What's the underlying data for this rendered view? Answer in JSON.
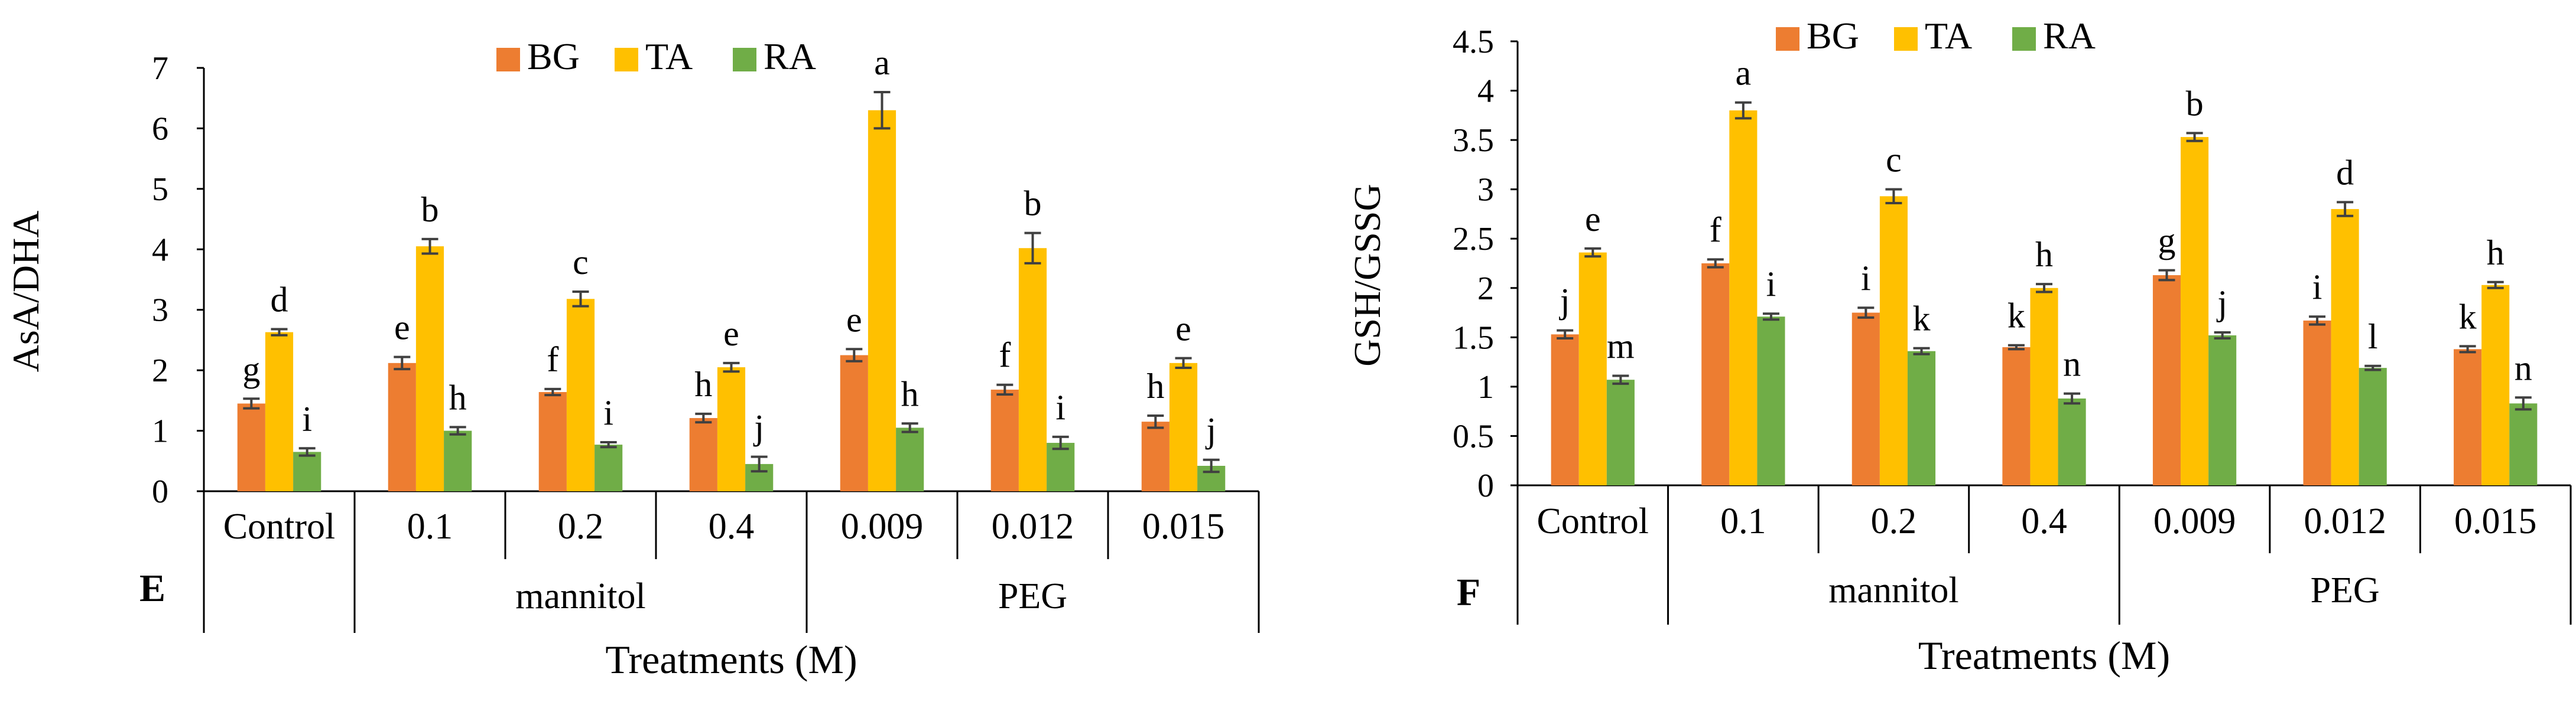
{
  "colors": {
    "BG": "#ED7D31",
    "TA": "#FFC000",
    "RA": "#70AD47",
    "axis": "#000000",
    "error": "#404040"
  },
  "chart_data": [
    {
      "type": "bar",
      "panel_label": "E",
      "ylabel": "AsA/DHA",
      "xlabel": "Treatments (M)",
      "ylim": [
        0,
        7
      ],
      "yticks": [
        "0",
        "1",
        "2",
        "3",
        "4",
        "5",
        "6",
        "7"
      ],
      "legend": [
        "BG",
        "TA",
        "RA"
      ],
      "legend_position": "top-center",
      "categories": [
        "Control",
        "0.1",
        "0.2",
        "0.4",
        "0.009",
        "0.012",
        "0.015"
      ],
      "groups": [
        {
          "label": "mannitol",
          "span": [
            1,
            3
          ]
        },
        {
          "label": "PEG",
          "span": [
            4,
            6
          ]
        }
      ],
      "series": [
        {
          "name": "BG",
          "values": [
            1.45,
            2.12,
            1.64,
            1.21,
            2.25,
            1.68,
            1.15
          ],
          "errors": [
            0.08,
            0.1,
            0.05,
            0.07,
            0.1,
            0.08,
            0.1
          ],
          "letters": [
            "g",
            "e",
            "f",
            "h",
            "e",
            "f",
            "h"
          ]
        },
        {
          "name": "TA",
          "values": [
            2.63,
            4.05,
            3.18,
            2.05,
            6.3,
            4.02,
            2.12
          ],
          "errors": [
            0.05,
            0.12,
            0.12,
            0.07,
            0.3,
            0.25,
            0.08
          ],
          "letters": [
            "d",
            "b",
            "c",
            "e",
            "a",
            "b",
            "e"
          ]
        },
        {
          "name": "RA",
          "values": [
            0.65,
            1.0,
            0.77,
            0.45,
            1.05,
            0.8,
            0.42
          ],
          "errors": [
            0.06,
            0.06,
            0.04,
            0.12,
            0.07,
            0.1,
            0.1
          ],
          "letters": [
            "i",
            "h",
            "i",
            "j",
            "h",
            "i",
            "j"
          ]
        }
      ]
    },
    {
      "type": "bar",
      "panel_label": "F",
      "ylabel": "GSH/GSSG",
      "xlabel": "Treatments (M)",
      "ylim": [
        0,
        4.5
      ],
      "yticks": [
        "0",
        "0.5",
        "1",
        "1.5",
        "2",
        "2.5",
        "3",
        "3.5",
        "4",
        "4.5"
      ],
      "legend": [
        "BG",
        "TA",
        "RA"
      ],
      "legend_position": "top-center",
      "categories": [
        "Control",
        "0.1",
        "0.2",
        "0.4",
        "0.009",
        "0.012",
        "0.015"
      ],
      "groups": [
        {
          "label": "mannitol",
          "span": [
            1,
            3
          ]
        },
        {
          "label": "PEG",
          "span": [
            4,
            6
          ]
        }
      ],
      "series": [
        {
          "name": "BG",
          "values": [
            1.53,
            2.25,
            1.75,
            1.4,
            2.13,
            1.67,
            1.38
          ],
          "errors": [
            0.04,
            0.04,
            0.05,
            0.02,
            0.05,
            0.04,
            0.03
          ],
          "letters": [
            "j",
            "f",
            "i",
            "k",
            "g",
            "i",
            "k"
          ]
        },
        {
          "name": "TA",
          "values": [
            2.36,
            3.8,
            2.93,
            2.0,
            3.53,
            2.8,
            2.03
          ],
          "errors": [
            0.04,
            0.08,
            0.07,
            0.04,
            0.04,
            0.07,
            0.03
          ],
          "letters": [
            "e",
            "a",
            "c",
            "h",
            "b",
            "d",
            "h"
          ]
        },
        {
          "name": "RA",
          "values": [
            1.07,
            1.71,
            1.36,
            0.88,
            1.52,
            1.19,
            0.83
          ],
          "errors": [
            0.04,
            0.03,
            0.03,
            0.05,
            0.03,
            0.02,
            0.06
          ],
          "letters": [
            "m",
            "i",
            "k",
            "n",
            "j",
            "l",
            "n"
          ]
        }
      ]
    }
  ]
}
